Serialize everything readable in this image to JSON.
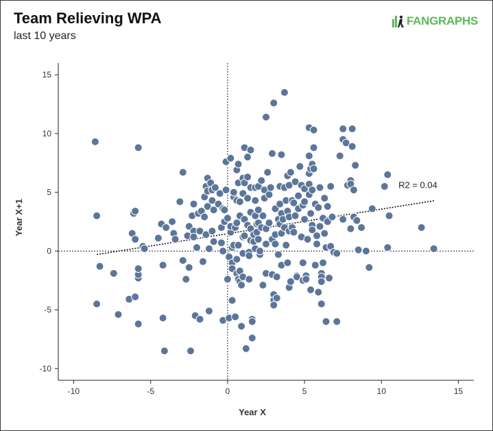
{
  "header": {
    "title": "Team Relieving WPA",
    "subtitle": "last 10 years",
    "logo_text_fan": "FAN",
    "logo_text_graphs": "GRAPHS"
  },
  "colors": {
    "point_fill": "#5b7699",
    "point_stroke": "#ffffff",
    "logo_green": "#5cb85c",
    "axis": "#222222"
  },
  "chart_data": {
    "type": "scatter",
    "title": "Team Relieving WPA",
    "subtitle": "last 10 years",
    "xlabel": "Year X",
    "ylabel": "Year X+1",
    "xlim": [
      -11,
      16
    ],
    "ylim": [
      -11,
      16
    ],
    "xticks": [
      -10,
      -5,
      0,
      5,
      10,
      15
    ],
    "yticks": [
      -10,
      -5,
      0,
      5,
      10,
      15
    ],
    "xtick_labels": [
      "-10",
      "-5",
      "0",
      "5",
      "10",
      "15"
    ],
    "ytick_labels": [
      "-10",
      "-5",
      "0",
      "5",
      "10",
      "15"
    ],
    "trendline": {
      "x": [
        -8.5,
        13.5
      ],
      "y": [
        -0.3,
        4.3
      ]
    },
    "annotation": "R2 = 0.04",
    "points": [
      [
        -8.6,
        9.3
      ],
      [
        -5.8,
        8.8
      ],
      [
        -8.5,
        3.0
      ],
      [
        -8.5,
        -4.5
      ],
      [
        -8.3,
        -1.3
      ],
      [
        -7.4,
        -1.9
      ],
      [
        -7.1,
        -5.4
      ],
      [
        -6.4,
        -4.1
      ],
      [
        -6.2,
        1.5
      ],
      [
        -6.1,
        3.2
      ],
      [
        -6.0,
        3.4
      ],
      [
        -6.0,
        1.0
      ],
      [
        -6.0,
        -3.9
      ],
      [
        -5.8,
        -2.3
      ],
      [
        -5.8,
        -2.0
      ],
      [
        -5.8,
        -1.5
      ],
      [
        -5.8,
        -6.2
      ],
      [
        -5.5,
        0.4
      ],
      [
        -5.4,
        0.2
      ],
      [
        -4.5,
        1.1
      ],
      [
        -4.3,
        2.3
      ],
      [
        -4.2,
        -1.2
      ],
      [
        -4.2,
        -5.7
      ],
      [
        -4.1,
        -8.5
      ],
      [
        -4.0,
        2.0
      ],
      [
        -3.6,
        2.5
      ],
      [
        -3.5,
        1.5
      ],
      [
        -3.4,
        1.0
      ],
      [
        -3.1,
        4.2
      ],
      [
        -2.9,
        6.7
      ],
      [
        -2.9,
        -0.8
      ],
      [
        -2.7,
        -2.4
      ],
      [
        -2.6,
        1.3
      ],
      [
        -2.5,
        2.1
      ],
      [
        -2.5,
        -1.4
      ],
      [
        -2.4,
        -8.5
      ],
      [
        -2.3,
        3.0
      ],
      [
        -2.2,
        1.7
      ],
      [
        -2.2,
        4.0
      ],
      [
        -2.2,
        1.2
      ],
      [
        -2.1,
        -5.5
      ],
      [
        -2.0,
        0.3
      ],
      [
        -1.9,
        3.2
      ],
      [
        -1.8,
        -5.8
      ],
      [
        -1.8,
        1.7
      ],
      [
        -1.7,
        3.4
      ],
      [
        -1.6,
        -0.9
      ],
      [
        -1.5,
        2.9
      ],
      [
        -1.5,
        4.6
      ],
      [
        -1.4,
        1.4
      ],
      [
        -1.4,
        5.5
      ],
      [
        -1.3,
        6.2
      ],
      [
        -1.3,
        5.1
      ],
      [
        -1.3,
        3.8
      ],
      [
        -1.2,
        0.2
      ],
      [
        -1.2,
        -5.1
      ],
      [
        -1.1,
        5.8
      ],
      [
        -1.0,
        4.3
      ],
      [
        -1.0,
        1.7
      ],
      [
        -1.0,
        5.2
      ],
      [
        -0.9,
        0.8
      ],
      [
        -0.9,
        3.5
      ],
      [
        -0.8,
        5.4
      ],
      [
        -0.6,
        4.0
      ],
      [
        -0.5,
        4.9
      ],
      [
        -0.4,
        2.0
      ],
      [
        -0.4,
        0.7
      ],
      [
        -0.3,
        3.6
      ],
      [
        -0.3,
        0.0
      ],
      [
        -0.3,
        -5.9
      ],
      [
        -0.2,
        2.5
      ],
      [
        -0.2,
        3.5
      ],
      [
        -0.1,
        5.2
      ],
      [
        -0.1,
        7.6
      ],
      [
        0.0,
        2.8
      ],
      [
        0.0,
        -2.4
      ],
      [
        0.1,
        -0.5
      ],
      [
        0.1,
        -5.7
      ],
      [
        0.2,
        1.6
      ],
      [
        0.2,
        2.1
      ],
      [
        0.2,
        7.9
      ],
      [
        0.3,
        -1.0
      ],
      [
        0.3,
        -1.5
      ],
      [
        0.3,
        -4.2
      ],
      [
        0.3,
        0.3
      ],
      [
        0.4,
        4.6
      ],
      [
        0.4,
        5.0
      ],
      [
        0.4,
        0.5
      ],
      [
        0.5,
        2.0
      ],
      [
        0.5,
        -5.6
      ],
      [
        0.6,
        6.9
      ],
      [
        0.6,
        4.3
      ],
      [
        0.6,
        2.4
      ],
      [
        0.6,
        -0.7
      ],
      [
        0.6,
        -1.9
      ],
      [
        0.7,
        7.4
      ],
      [
        0.7,
        5.8
      ],
      [
        0.7,
        0.5
      ],
      [
        0.7,
        -2.4
      ],
      [
        0.8,
        -2.6
      ],
      [
        0.8,
        -1.7
      ],
      [
        0.8,
        4.2
      ],
      [
        0.8,
        3.0
      ],
      [
        0.9,
        -2.9
      ],
      [
        0.9,
        -6.4
      ],
      [
        1.0,
        6.2
      ],
      [
        1.0,
        4.9
      ],
      [
        1.0,
        1.2
      ],
      [
        1.0,
        -0.2
      ],
      [
        1.0,
        -2.2
      ],
      [
        1.1,
        8.8
      ],
      [
        1.1,
        5.8
      ],
      [
        1.1,
        2.7
      ],
      [
        1.1,
        1.3
      ],
      [
        1.2,
        -8.3
      ],
      [
        1.3,
        6.3
      ],
      [
        1.3,
        4.5
      ],
      [
        1.3,
        8.0
      ],
      [
        1.3,
        2.2
      ],
      [
        1.4,
        -0.1
      ],
      [
        1.4,
        -0.4
      ],
      [
        1.4,
        -2.4
      ],
      [
        1.5,
        8.6
      ],
      [
        1.5,
        5.4
      ],
      [
        1.5,
        3.3
      ],
      [
        1.5,
        1.9
      ],
      [
        1.5,
        0.9
      ],
      [
        1.6,
        -5.8
      ],
      [
        1.6,
        -6.0
      ],
      [
        1.6,
        -7.4
      ],
      [
        1.7,
        0.8
      ],
      [
        1.7,
        1.4
      ],
      [
        1.8,
        5.4
      ],
      [
        1.8,
        4.3
      ],
      [
        1.8,
        3.0
      ],
      [
        1.8,
        0.2
      ],
      [
        1.9,
        2.3
      ],
      [
        1.9,
        1.6
      ],
      [
        2.0,
        5.5
      ],
      [
        2.0,
        3.5
      ],
      [
        2.0,
        2.4
      ],
      [
        2.0,
        1.0
      ],
      [
        2.1,
        -0.3
      ],
      [
        2.1,
        0.0
      ],
      [
        2.2,
        6.0
      ],
      [
        2.2,
        2.0
      ],
      [
        2.3,
        3.0
      ],
      [
        2.3,
        -2.9
      ],
      [
        2.4,
        5.2
      ],
      [
        2.4,
        4.5
      ],
      [
        2.5,
        11.4
      ],
      [
        2.5,
        1.9
      ],
      [
        2.5,
        0.6
      ],
      [
        2.5,
        -1.9
      ],
      [
        2.6,
        6.7
      ],
      [
        2.7,
        4.8
      ],
      [
        2.7,
        2.4
      ],
      [
        2.8,
        5.4
      ],
      [
        2.9,
        8.3
      ],
      [
        2.9,
        1.0
      ],
      [
        2.9,
        -2.0
      ],
      [
        3.0,
        -3.7
      ],
      [
        3.0,
        -4.2
      ],
      [
        3.0,
        -4.6
      ],
      [
        3.0,
        12.6
      ],
      [
        3.1,
        3.6
      ],
      [
        3.1,
        1.4
      ],
      [
        3.1,
        0.6
      ],
      [
        3.2,
        -2.2
      ],
      [
        3.2,
        -4.0
      ],
      [
        3.3,
        2.7
      ],
      [
        3.3,
        -0.3
      ],
      [
        3.4,
        5.5
      ],
      [
        3.4,
        4.0
      ],
      [
        3.4,
        2.3
      ],
      [
        3.5,
        8.2
      ],
      [
        3.5,
        3.2
      ],
      [
        3.5,
        1.5
      ],
      [
        3.5,
        -1.2
      ],
      [
        3.6,
        2.7
      ],
      [
        3.7,
        5.4
      ],
      [
        3.7,
        2.0
      ],
      [
        3.7,
        13.5
      ],
      [
        3.8,
        4.3
      ],
      [
        3.8,
        0.5
      ],
      [
        3.9,
        6.4
      ],
      [
        3.9,
        3.4
      ],
      [
        3.9,
        -1.0
      ],
      [
        4.0,
        5.6
      ],
      [
        4.0,
        2.9
      ],
      [
        4.0,
        1.7
      ],
      [
        4.0,
        -3.1
      ],
      [
        4.1,
        6.7
      ],
      [
        4.1,
        -2.6
      ],
      [
        4.2,
        2.0
      ],
      [
        4.2,
        4.3
      ],
      [
        4.3,
        4.1
      ],
      [
        4.3,
        1.6
      ],
      [
        4.4,
        5.9
      ],
      [
        4.4,
        3.0
      ],
      [
        4.5,
        -2.1
      ],
      [
        4.5,
        -2.2
      ],
      [
        4.6,
        4.7
      ],
      [
        4.6,
        3.6
      ],
      [
        4.7,
        7.2
      ],
      [
        4.8,
        5.6
      ],
      [
        4.8,
        1.2
      ],
      [
        4.9,
        3.9
      ],
      [
        4.9,
        -1.0
      ],
      [
        4.9,
        -2.5
      ],
      [
        5.0,
        5.3
      ],
      [
        5.0,
        4.2
      ],
      [
        5.0,
        2.7
      ],
      [
        5.1,
        -2.1
      ],
      [
        5.1,
        -2.4
      ],
      [
        5.2,
        1.0
      ],
      [
        5.3,
        10.5
      ],
      [
        5.3,
        8.1
      ],
      [
        5.3,
        6.6
      ],
      [
        5.3,
        5.7
      ],
      [
        5.3,
        4.8
      ],
      [
        5.4,
        7.0
      ],
      [
        5.4,
        3.2
      ],
      [
        5.4,
        -3.3
      ],
      [
        5.5,
        7.4
      ],
      [
        5.5,
        5.2
      ],
      [
        5.5,
        2.2
      ],
      [
        5.5,
        1.8
      ],
      [
        5.6,
        10.3
      ],
      [
        5.6,
        8.8
      ],
      [
        5.6,
        7.0
      ],
      [
        5.7,
        4.0
      ],
      [
        5.7,
        -1.2
      ],
      [
        5.8,
        1.3
      ],
      [
        5.8,
        0.6
      ],
      [
        5.9,
        3.7
      ],
      [
        5.9,
        -3.5
      ],
      [
        6.0,
        5.4
      ],
      [
        6.0,
        2.1
      ],
      [
        6.1,
        -1.9
      ],
      [
        6.1,
        -2.2
      ],
      [
        6.1,
        -2.6
      ],
      [
        6.1,
        -4.5
      ],
      [
        6.2,
        2.8
      ],
      [
        6.2,
        -1.0
      ],
      [
        6.3,
        4.5
      ],
      [
        6.3,
        1.5
      ],
      [
        6.4,
        0.3
      ],
      [
        6.4,
        -6.0
      ],
      [
        6.5,
        3.8
      ],
      [
        6.5,
        2.5
      ],
      [
        6.6,
        -2.3
      ],
      [
        6.7,
        5.5
      ],
      [
        6.7,
        0.4
      ],
      [
        6.8,
        2.9
      ],
      [
        6.9,
        -0.1
      ],
      [
        7.1,
        -6.0
      ],
      [
        7.1,
        -0.2
      ],
      [
        7.3,
        8.1
      ],
      [
        7.5,
        10.4
      ],
      [
        7.5,
        9.5
      ],
      [
        7.5,
        2.7
      ],
      [
        7.7,
        9.2
      ],
      [
        7.8,
        5.6
      ],
      [
        8.0,
        6.0
      ],
      [
        8.0,
        5.7
      ],
      [
        8.0,
        1.9
      ],
      [
        8.1,
        10.4
      ],
      [
        8.1,
        8.9
      ],
      [
        8.2,
        5.2
      ],
      [
        8.2,
        2.9
      ],
      [
        8.3,
        7.3
      ],
      [
        8.4,
        2.6
      ],
      [
        8.5,
        0.1
      ],
      [
        8.7,
        2.0
      ],
      [
        9.0,
        0.0
      ],
      [
        9.2,
        -1.4
      ],
      [
        9.4,
        3.6
      ],
      [
        10.2,
        5.5
      ],
      [
        10.4,
        6.5
      ],
      [
        10.4,
        0.3
      ],
      [
        10.5,
        3.0
      ],
      [
        12.6,
        2.0
      ],
      [
        13.4,
        0.2
      ]
    ]
  }
}
